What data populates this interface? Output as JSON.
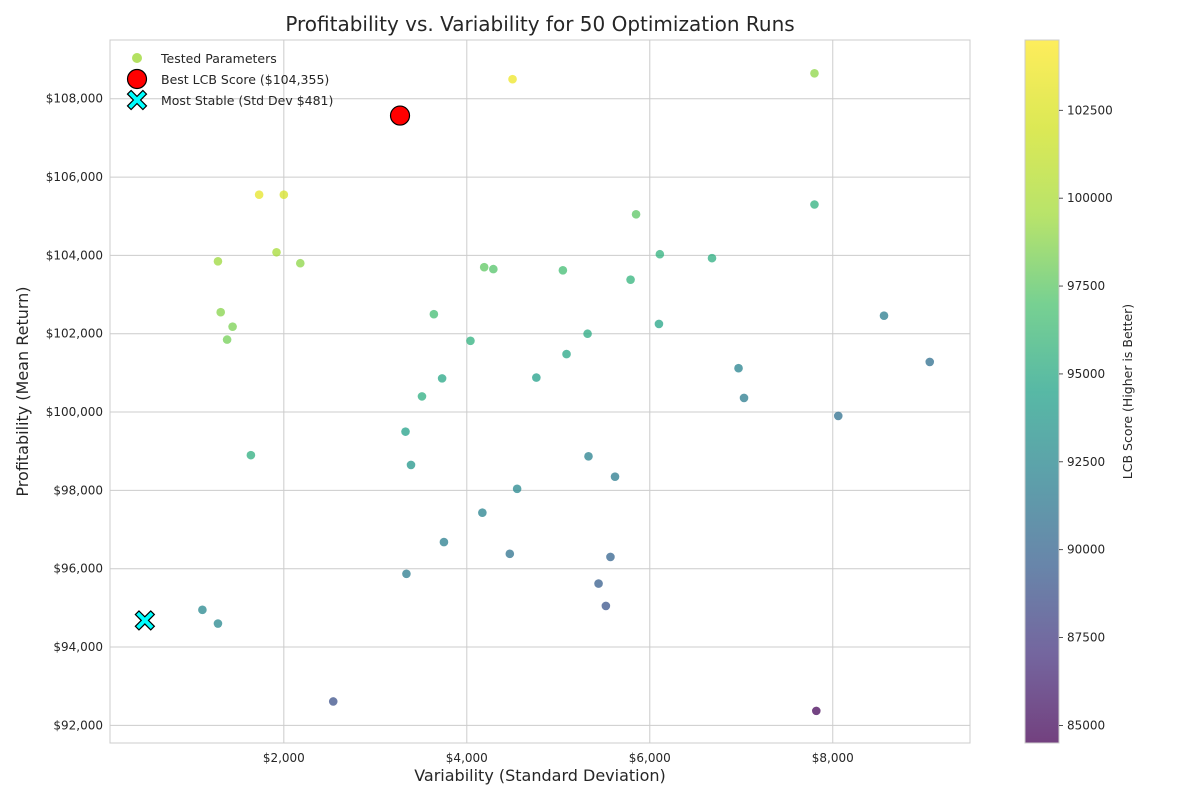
{
  "chart_data": {
    "type": "scatter",
    "title": "Profitability vs. Variability for 50 Optimization Runs",
    "xlabel": "Variability (Standard Deviation)",
    "ylabel": "Profitability (Mean Return)",
    "xlim": [
      100,
      9500
    ],
    "ylim": [
      91550,
      109500
    ],
    "x_ticks": [
      2000,
      4000,
      6000,
      8000
    ],
    "x_tick_labels": [
      "$2,000",
      "$4,000",
      "$6,000",
      "$8,000"
    ],
    "y_ticks": [
      92000,
      94000,
      96000,
      98000,
      100000,
      102000,
      104000,
      106000,
      108000
    ],
    "y_tick_labels": [
      "$92,000",
      "$94,000",
      "$96,000",
      "$98,000",
      "$100,000",
      "$102,000",
      "$104,000",
      "$106,000",
      "$108,000"
    ],
    "grid": true,
    "legend_position": "top-left",
    "colorbar": {
      "label": "LCB Score (Higher is Better)",
      "range": [
        84500,
        104500
      ],
      "ticks": [
        85000,
        87500,
        90000,
        92500,
        95000,
        97500,
        100000,
        102500
      ],
      "tick_labels": [
        "85000",
        "87500",
        "90000",
        "92500",
        "95000",
        "97500",
        "100000",
        "102500"
      ],
      "colormap": "viridis"
    },
    "series": [
      {
        "name": "Tested Parameters",
        "legend_color": "#a0da39",
        "points": [
          {
            "x": 4500,
            "y": 108500,
            "lcb": 104000
          },
          {
            "x": 7800,
            "y": 108650,
            "lcb": 101000
          },
          {
            "x": 1730,
            "y": 105550,
            "lcb": 103800
          },
          {
            "x": 2000,
            "y": 105550,
            "lcb": 103300
          },
          {
            "x": 5850,
            "y": 105050,
            "lcb": 99300
          },
          {
            "x": 7800,
            "y": 105300,
            "lcb": 97200
          },
          {
            "x": 1280,
            "y": 103850,
            "lcb": 101500
          },
          {
            "x": 1920,
            "y": 104080,
            "lcb": 101800
          },
          {
            "x": 2180,
            "y": 103800,
            "lcb": 101000
          },
          {
            "x": 4190,
            "y": 103700,
            "lcb": 99400
          },
          {
            "x": 4290,
            "y": 103650,
            "lcb": 99000
          },
          {
            "x": 5050,
            "y": 103620,
            "lcb": 98300
          },
          {
            "x": 5790,
            "y": 103380,
            "lcb": 97500
          },
          {
            "x": 6110,
            "y": 104030,
            "lcb": 97300
          },
          {
            "x": 6680,
            "y": 103930,
            "lcb": 96900
          },
          {
            "x": 1310,
            "y": 102550,
            "lcb": 100800
          },
          {
            "x": 1440,
            "y": 102180,
            "lcb": 100400
          },
          {
            "x": 1380,
            "y": 101850,
            "lcb": 100200
          },
          {
            "x": 3640,
            "y": 102500,
            "lcb": 98300
          },
          {
            "x": 5320,
            "y": 102000,
            "lcb": 96600
          },
          {
            "x": 6100,
            "y": 102250,
            "lcb": 96100
          },
          {
            "x": 4040,
            "y": 101820,
            "lcb": 97200
          },
          {
            "x": 5090,
            "y": 101480,
            "lcb": 96300
          },
          {
            "x": 3730,
            "y": 100860,
            "lcb": 96300
          },
          {
            "x": 4760,
            "y": 100880,
            "lcb": 95700
          },
          {
            "x": 3510,
            "y": 100400,
            "lcb": 96900
          },
          {
            "x": 3330,
            "y": 99500,
            "lcb": 95800
          },
          {
            "x": 1640,
            "y": 98900,
            "lcb": 97000
          },
          {
            "x": 3390,
            "y": 98650,
            "lcb": 95000
          },
          {
            "x": 6970,
            "y": 101120,
            "lcb": 93400
          },
          {
            "x": 7030,
            "y": 100360,
            "lcb": 92800
          },
          {
            "x": 8560,
            "y": 102460,
            "lcb": 92900
          },
          {
            "x": 9060,
            "y": 101280,
            "lcb": 91700
          },
          {
            "x": 8060,
            "y": 99900,
            "lcb": 91800
          },
          {
            "x": 5330,
            "y": 98870,
            "lcb": 93200
          },
          {
            "x": 5620,
            "y": 98350,
            "lcb": 92800
          },
          {
            "x": 4550,
            "y": 98040,
            "lcb": 93800
          },
          {
            "x": 4170,
            "y": 97430,
            "lcb": 93400
          },
          {
            "x": 3750,
            "y": 96680,
            "lcb": 93000
          },
          {
            "x": 4470,
            "y": 96380,
            "lcb": 91900
          },
          {
            "x": 5570,
            "y": 96300,
            "lcb": 90800
          },
          {
            "x": 5440,
            "y": 95620,
            "lcb": 90400
          },
          {
            "x": 5520,
            "y": 95050,
            "lcb": 89700
          },
          {
            "x": 3340,
            "y": 95870,
            "lcb": 92800
          },
          {
            "x": 1110,
            "y": 94950,
            "lcb": 93800
          },
          {
            "x": 1280,
            "y": 94600,
            "lcb": 93800
          },
          {
            "x": 2540,
            "y": 92610,
            "lcb": 89400
          },
          {
            "x": 7820,
            "y": 92370,
            "lcb": 84800
          }
        ]
      },
      {
        "name": "Best LCB Score ($104,355)",
        "marker": "circle",
        "color": "#ff0000",
        "points": [
          {
            "x": 3270,
            "y": 107570,
            "lcb": 104355
          }
        ]
      },
      {
        "name": "Most Stable (Std Dev $481)",
        "marker": "x-cross",
        "color": "#00ffff",
        "points": [
          {
            "x": 481,
            "y": 94680
          }
        ]
      }
    ]
  }
}
